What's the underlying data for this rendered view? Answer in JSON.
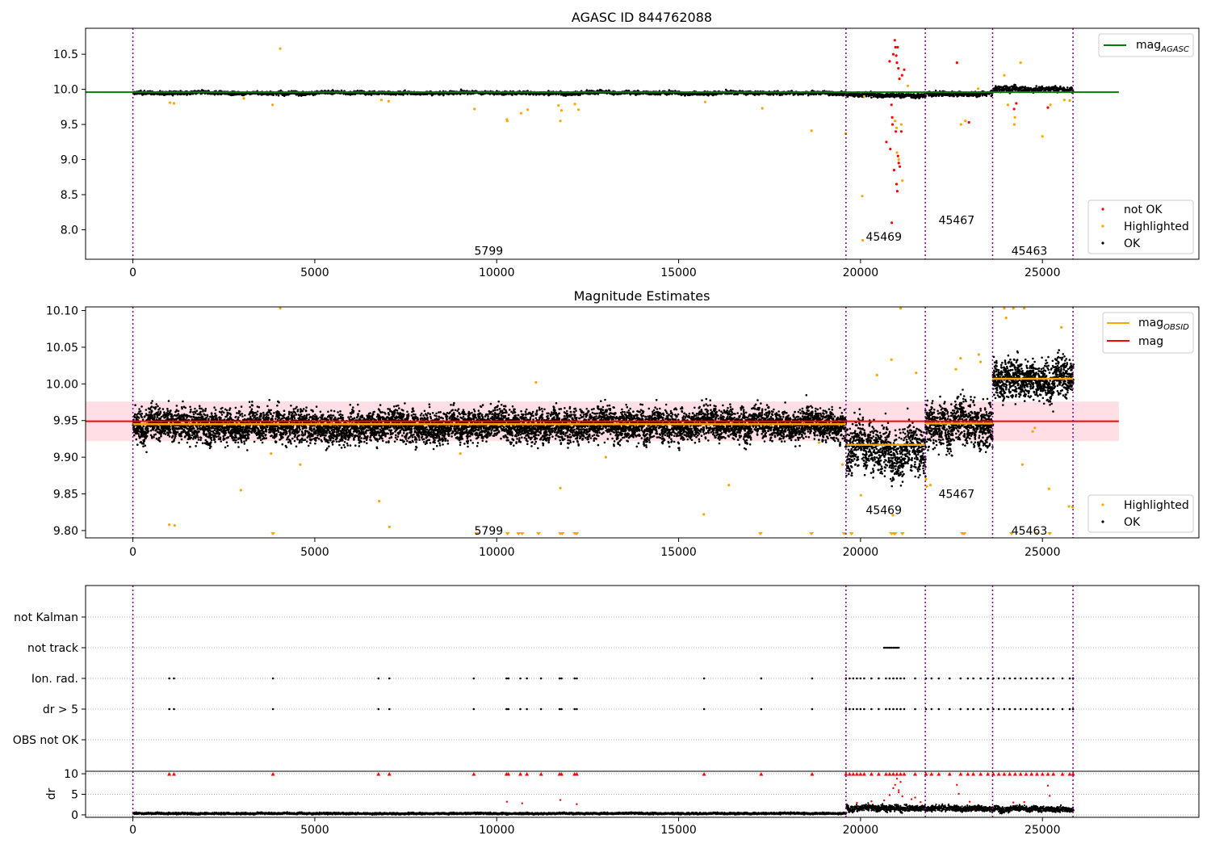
{
  "colors": {
    "ok": "#000000",
    "highlighted": "#ffa500",
    "not_ok": "#ff0000",
    "agasc_line": "#008000",
    "obsid_line": "#ffa500",
    "mag_line": "#ff0000",
    "mag_band": "#ffc0cb",
    "obsid_boundary": "#800080",
    "gridline": "#b0b0b0"
  },
  "shared_x": {
    "xlim": [
      -1300,
      29300
    ],
    "xticks": [
      0,
      5000,
      10000,
      15000,
      20000,
      25000
    ],
    "obsid_boundaries": [
      0,
      19600,
      21780,
      23630,
      25840
    ]
  },
  "chart_data": [
    {
      "type": "scatter",
      "title": "AGASC ID 844762088",
      "ylim": [
        7.58,
        10.87
      ],
      "yticks": [
        "8.0",
        "8.5",
        "9.0",
        "9.5",
        "10.0",
        "10.5"
      ],
      "legend_upper": {
        "placement": "top-right",
        "entries": [
          "mag$_{AGASC}$"
        ]
      },
      "legend_upper_display": {
        "main": "mag",
        "sub": "AGASC"
      },
      "legend_lower": {
        "placement": "bottom-right",
        "entries": [
          "not OK",
          "Highlighted",
          "OK"
        ]
      },
      "reference_lines": [
        {
          "name": "mag_AGASC",
          "y": 9.96,
          "x_range": [
            -1300,
            27100
          ]
        }
      ],
      "obsid_labels": [
        {
          "text": "5799",
          "x": 9780,
          "y": 7.7
        },
        {
          "text": "45469",
          "x": 20640,
          "y": 7.9
        },
        {
          "text": "45467",
          "x": 22640,
          "y": 8.14
        },
        {
          "text": "45463",
          "x": 24640,
          "y": 7.7
        }
      ],
      "segments": [
        {
          "x": [
            0,
            19600
          ],
          "y_center": 9.95,
          "spread": 0.03
        },
        {
          "x": [
            19600,
            21780
          ],
          "y_center": 9.915,
          "spread": 0.04
        },
        {
          "x": [
            21780,
            23630
          ],
          "y_center": 9.94,
          "spread": 0.04
        },
        {
          "x": [
            23630,
            25840
          ],
          "y_center": 10.005,
          "spread": 0.05
        }
      ],
      "highlighted_points": [
        [
          4050,
          10.58
        ],
        [
          1020,
          9.81
        ],
        [
          1130,
          9.8
        ],
        [
          3840,
          9.78
        ],
        [
          3050,
          9.87
        ],
        [
          6830,
          9.85
        ],
        [
          7030,
          9.83
        ],
        [
          9390,
          9.72
        ],
        [
          10280,
          9.57
        ],
        [
          10290,
          9.55
        ],
        [
          10670,
          9.66
        ],
        [
          10850,
          9.71
        ],
        [
          11700,
          9.77
        ],
        [
          11750,
          9.55
        ],
        [
          11780,
          9.7
        ],
        [
          12150,
          9.79
        ],
        [
          12250,
          9.71
        ],
        [
          15730,
          9.82
        ],
        [
          17300,
          9.73
        ],
        [
          18650,
          9.41
        ],
        [
          19590,
          9.37
        ],
        [
          20050,
          8.48
        ],
        [
          20060,
          7.85
        ],
        [
          20100,
          9.9
        ],
        [
          20950,
          9.55
        ],
        [
          20990,
          9.45
        ],
        [
          21000,
          9.1
        ],
        [
          21050,
          9.0
        ],
        [
          21120,
          9.5
        ],
        [
          21150,
          8.7
        ],
        [
          21300,
          10.05
        ],
        [
          22760,
          9.5
        ],
        [
          22880,
          9.55
        ],
        [
          23230,
          10.01
        ],
        [
          23950,
          10.2
        ],
        [
          24050,
          9.78
        ],
        [
          24240,
          9.6
        ],
        [
          24230,
          9.5
        ],
        [
          24400,
          10.38
        ],
        [
          25000,
          9.33
        ],
        [
          25220,
          9.78
        ],
        [
          25600,
          9.85
        ],
        [
          25750,
          9.84
        ]
      ],
      "not_ok_points": [
        [
          20710,
          9.25
        ],
        [
          20800,
          10.4
        ],
        [
          20820,
          9.15
        ],
        [
          20850,
          9.78
        ],
        [
          20860,
          8.1
        ],
        [
          20870,
          9.6
        ],
        [
          20880,
          9.5
        ],
        [
          20900,
          10.5
        ],
        [
          20920,
          8.85
        ],
        [
          20940,
          10.7
        ],
        [
          20960,
          10.6
        ],
        [
          20970,
          9.4
        ],
        [
          20980,
          10.48
        ],
        [
          20990,
          8.65
        ],
        [
          21000,
          10.38
        ],
        [
          21010,
          8.55
        ],
        [
          21020,
          10.6
        ],
        [
          21030,
          9.05
        ],
        [
          21040,
          10.3
        ],
        [
          21050,
          8.95
        ],
        [
          21070,
          10.15
        ],
        [
          21080,
          8.9
        ],
        [
          21120,
          9.4
        ],
        [
          21140,
          10.2
        ],
        [
          21200,
          10.28
        ],
        [
          22650,
          10.38
        ],
        [
          22980,
          9.53
        ],
        [
          24220,
          9.72
        ],
        [
          24280,
          9.8
        ],
        [
          25150,
          9.74
        ]
      ]
    },
    {
      "type": "scatter",
      "title": "Magnitude Estimates",
      "ylim": [
        9.79,
        10.105
      ],
      "yticks": [
        "9.80",
        "9.85",
        "9.90",
        "9.95",
        "10.00",
        "10.05",
        "10.10"
      ],
      "legend_upper": {
        "placement": "top-right",
        "entries": [
          "mag$_{OBSID}$",
          "mag"
        ]
      },
      "legend_upper_display": {
        "main": "mag",
        "sub": "OBSID"
      },
      "legend_lower": {
        "placement": "bottom-right",
        "entries": [
          "Highlighted",
          "OK"
        ]
      },
      "mag": {
        "y": 9.949,
        "band": [
          9.922,
          9.976
        ],
        "x_range": [
          -1300,
          27100
        ]
      },
      "mag_obsid": [
        {
          "x": [
            0,
            19600
          ],
          "y": 9.945
        },
        {
          "x": [
            19600,
            21780
          ],
          "y": 9.917
        },
        {
          "x": [
            21780,
            23630
          ],
          "y": 9.946
        },
        {
          "x": [
            23630,
            25840
          ],
          "y": 10.007
        }
      ],
      "obsid_labels": [
        {
          "text": "5799",
          "x": 9780,
          "y": 9.8
        },
        {
          "text": "45469",
          "x": 20640,
          "y": 9.828
        },
        {
          "text": "45467",
          "x": 22640,
          "y": 9.85
        },
        {
          "text": "45463",
          "x": 24640,
          "y": 9.8
        }
      ],
      "segments": [
        {
          "x": [
            0,
            19600
          ],
          "y_center": 9.945,
          "spread": 0.025
        },
        {
          "x": [
            19600,
            21780
          ],
          "y_center": 9.91,
          "spread": 0.038
        },
        {
          "x": [
            21780,
            23630
          ],
          "y_center": 9.945,
          "spread": 0.035
        },
        {
          "x": [
            23630,
            25840
          ],
          "y_center": 10.008,
          "spread": 0.03
        }
      ],
      "highlighted_points": [
        [
          4050,
          10.103
        ],
        [
          21100,
          10.103
        ],
        [
          24200,
          10.103
        ],
        [
          24500,
          10.103
        ],
        [
          23950,
          10.103
        ],
        [
          1000,
          9.808
        ],
        [
          1150,
          9.807
        ],
        [
          2970,
          9.855
        ],
        [
          6770,
          9.84
        ],
        [
          7050,
          9.805
        ],
        [
          11080,
          10.002
        ],
        [
          11750,
          9.858
        ],
        [
          15690,
          9.822
        ],
        [
          16380,
          9.862
        ],
        [
          20010,
          9.848
        ],
        [
          20850,
          10.033
        ],
        [
          20450,
          10.012
        ],
        [
          20890,
          9.821
        ],
        [
          21530,
          10.015
        ],
        [
          21920,
          9.862
        ],
        [
          22620,
          10.02
        ],
        [
          22750,
          10.035
        ],
        [
          23250,
          10.04
        ],
        [
          23300,
          10.03
        ],
        [
          24000,
          10.09
        ],
        [
          25180,
          9.857
        ],
        [
          25520,
          10.077
        ],
        [
          24450,
          9.89
        ],
        [
          25730,
          9.833
        ],
        [
          25830,
          9.832
        ],
        [
          4600,
          9.89
        ],
        [
          18860,
          9.92
        ],
        [
          19500,
          9.89
        ],
        [
          21800,
          9.87
        ],
        [
          21820,
          9.86
        ],
        [
          24730,
          9.935
        ],
        [
          24790,
          9.94
        ],
        [
          3800,
          9.905
        ],
        [
          9000,
          9.905
        ],
        [
          13000,
          9.9
        ]
      ],
      "highlighted_floor_x": [
        3850,
        9450,
        10300,
        10600,
        10700,
        11150,
        11750,
        11800,
        12150,
        12200,
        17250,
        18650,
        19550,
        19750,
        20850,
        20920,
        20950,
        21150,
        22800,
        22850,
        24150,
        24850,
        25200
      ]
    },
    {
      "type": "scatter",
      "title": "",
      "flag_rows": [
        "not Kalman",
        "not track",
        "Ion. rad.",
        "dr > 5",
        "OBS not OK"
      ],
      "flags": {
        "not track": [
          20650,
          20700,
          20750,
          20800,
          20850,
          20900,
          20950,
          21000,
          21050
        ],
        "Ion. rad.": [
          1000,
          1130,
          3850,
          6750,
          7050,
          9370,
          10270,
          10320,
          10650,
          10830,
          11220,
          11730,
          11780,
          12140,
          12200,
          15700,
          17270,
          18670,
          19600,
          19700,
          19800,
          19900,
          20000,
          20100,
          20300,
          20500,
          20700,
          20800,
          20900,
          21000,
          21100,
          21200,
          21500,
          21800,
          21950,
          22150,
          22450,
          22750,
          22950,
          23100,
          23300,
          23500,
          23650,
          23800,
          23950,
          24100,
          24250,
          24400,
          24550,
          24700,
          24850,
          25000,
          25150,
          25300,
          25550,
          25750,
          25840
        ],
        "dr > 5": [
          1000,
          1130,
          3850,
          6750,
          7050,
          9370,
          10270,
          10320,
          10650,
          10830,
          11220,
          11730,
          11780,
          12140,
          12200,
          15700,
          17270,
          18670,
          19600,
          19700,
          19800,
          19900,
          20000,
          20100,
          20300,
          20500,
          20700,
          20800,
          20900,
          21000,
          21100,
          21200,
          21500,
          21800,
          21950,
          22150,
          22450,
          22750,
          22950,
          23100,
          23300,
          23500,
          23650,
          23800,
          23950,
          24100,
          24250,
          24400,
          24550,
          24700,
          24850,
          25000,
          25150,
          25300,
          25550,
          25750,
          25840
        ]
      }
    },
    {
      "type": "scatter",
      "ylabel": "dr",
      "ylim": [
        -0.6,
        10.6
      ],
      "yticks": [
        "0",
        "5",
        "10"
      ],
      "clip_value": 10,
      "segments": [
        {
          "x": [
            0,
            19600
          ],
          "y_center": 0.35,
          "spread": 0.25
        },
        {
          "x": [
            19600,
            21780
          ],
          "y_center": 1.7,
          "spread": 0.9
        },
        {
          "x": [
            21780,
            23630
          ],
          "y_center": 1.5,
          "spread": 0.8
        },
        {
          "x": [
            23630,
            25840
          ],
          "y_center": 1.4,
          "spread": 0.8
        }
      ],
      "red_points": [
        [
          10280,
          3.2
        ],
        [
          10700,
          2.8
        ],
        [
          11750,
          3.6
        ],
        [
          12200,
          2.6
        ],
        [
          20650,
          3.5
        ],
        [
          20800,
          4.8
        ],
        [
          20900,
          6.5
        ],
        [
          20950,
          7.3
        ],
        [
          21000,
          8.8
        ],
        [
          21050,
          6.0
        ],
        [
          21050,
          5.5
        ],
        [
          21100,
          8.0
        ],
        [
          21150,
          4.5
        ],
        [
          22650,
          7.3
        ],
        [
          22700,
          5.1
        ],
        [
          23000,
          3.2
        ],
        [
          24200,
          3.0
        ],
        [
          25150,
          7.1
        ],
        [
          25200,
          4.6
        ],
        [
          24500,
          3.1
        ],
        [
          21400,
          3.8
        ],
        [
          21500,
          4.2
        ],
        [
          21650,
          3.1
        ],
        [
          20300,
          3.3
        ],
        [
          19900,
          2.9
        ]
      ]
    }
  ]
}
